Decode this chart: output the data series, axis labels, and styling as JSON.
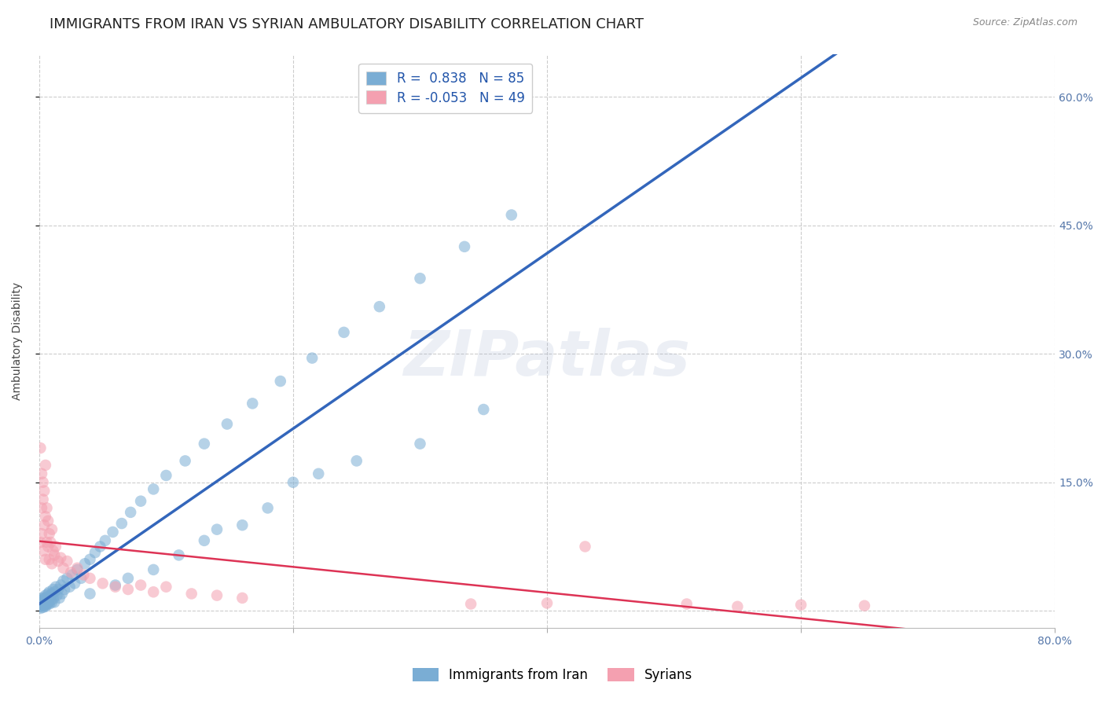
{
  "title": "IMMIGRANTS FROM IRAN VS SYRIAN AMBULATORY DISABILITY CORRELATION CHART",
  "source": "Source: ZipAtlas.com",
  "ylabel": "Ambulatory Disability",
  "xlim": [
    0.0,
    0.8
  ],
  "ylim": [
    -0.02,
    0.65
  ],
  "grid_color": "#cccccc",
  "background_color": "#ffffff",
  "watermark": "ZIPatlas",
  "iran_R": 0.838,
  "iran_N": 85,
  "syria_R": -0.053,
  "syria_N": 49,
  "iran_color": "#7aadd4",
  "iran_color_alpha": 0.55,
  "syria_color": "#f4a0b0",
  "syria_color_alpha": 0.55,
  "iran_line_color": "#3366bb",
  "syria_line_color": "#dd3355",
  "iran_x": [
    0.001,
    0.001,
    0.001,
    0.002,
    0.002,
    0.002,
    0.002,
    0.003,
    0.003,
    0.003,
    0.003,
    0.004,
    0.004,
    0.004,
    0.005,
    0.005,
    0.005,
    0.005,
    0.006,
    0.006,
    0.006,
    0.007,
    0.007,
    0.007,
    0.008,
    0.008,
    0.008,
    0.009,
    0.009,
    0.01,
    0.01,
    0.011,
    0.011,
    0.012,
    0.012,
    0.013,
    0.014,
    0.015,
    0.016,
    0.017,
    0.018,
    0.019,
    0.02,
    0.022,
    0.024,
    0.026,
    0.028,
    0.03,
    0.033,
    0.036,
    0.04,
    0.044,
    0.048,
    0.052,
    0.058,
    0.065,
    0.072,
    0.08,
    0.09,
    0.1,
    0.115,
    0.13,
    0.148,
    0.168,
    0.19,
    0.215,
    0.24,
    0.268,
    0.3,
    0.335,
    0.372,
    0.2,
    0.25,
    0.18,
    0.16,
    0.22,
    0.3,
    0.35,
    0.13,
    0.09,
    0.07,
    0.04,
    0.14,
    0.11,
    0.06
  ],
  "iran_y": [
    0.005,
    0.01,
    0.003,
    0.008,
    0.012,
    0.006,
    0.015,
    0.01,
    0.007,
    0.013,
    0.004,
    0.009,
    0.015,
    0.006,
    0.012,
    0.008,
    0.018,
    0.005,
    0.011,
    0.016,
    0.007,
    0.013,
    0.02,
    0.009,
    0.015,
    0.022,
    0.008,
    0.018,
    0.012,
    0.02,
    0.01,
    0.025,
    0.014,
    0.022,
    0.01,
    0.028,
    0.018,
    0.025,
    0.015,
    0.03,
    0.02,
    0.035,
    0.025,
    0.038,
    0.028,
    0.042,
    0.032,
    0.048,
    0.038,
    0.055,
    0.06,
    0.068,
    0.075,
    0.082,
    0.092,
    0.102,
    0.115,
    0.128,
    0.142,
    0.158,
    0.175,
    0.195,
    0.218,
    0.242,
    0.268,
    0.295,
    0.325,
    0.355,
    0.388,
    0.425,
    0.462,
    0.15,
    0.175,
    0.12,
    0.1,
    0.16,
    0.195,
    0.235,
    0.082,
    0.048,
    0.038,
    0.02,
    0.095,
    0.065,
    0.03
  ],
  "syria_x": [
    0.001,
    0.001,
    0.002,
    0.002,
    0.002,
    0.003,
    0.003,
    0.003,
    0.004,
    0.004,
    0.005,
    0.005,
    0.005,
    0.006,
    0.006,
    0.007,
    0.007,
    0.008,
    0.008,
    0.009,
    0.01,
    0.01,
    0.011,
    0.012,
    0.013,
    0.015,
    0.017,
    0.019,
    0.022,
    0.025,
    0.03,
    0.035,
    0.04,
    0.05,
    0.06,
    0.07,
    0.08,
    0.09,
    0.1,
    0.12,
    0.14,
    0.16,
    0.34,
    0.43,
    0.51,
    0.4,
    0.55,
    0.6,
    0.65
  ],
  "syria_y": [
    0.19,
    0.08,
    0.16,
    0.12,
    0.09,
    0.15,
    0.13,
    0.07,
    0.14,
    0.1,
    0.17,
    0.11,
    0.06,
    0.12,
    0.08,
    0.105,
    0.075,
    0.09,
    0.06,
    0.08,
    0.095,
    0.055,
    0.07,
    0.065,
    0.075,
    0.058,
    0.062,
    0.05,
    0.058,
    0.045,
    0.05,
    0.042,
    0.038,
    0.032,
    0.028,
    0.025,
    0.03,
    0.022,
    0.028,
    0.02,
    0.018,
    0.015,
    0.008,
    0.075,
    0.008,
    0.009,
    0.005,
    0.007,
    0.006
  ],
  "legend_iran_label": "Immigrants from Iran",
  "legend_syria_label": "Syrians",
  "title_fontsize": 13,
  "axis_label_fontsize": 10,
  "tick_fontsize": 10,
  "legend_fontsize": 12,
  "watermark_fontsize": 58,
  "watermark_color": "#99aacc",
  "watermark_alpha": 0.18
}
